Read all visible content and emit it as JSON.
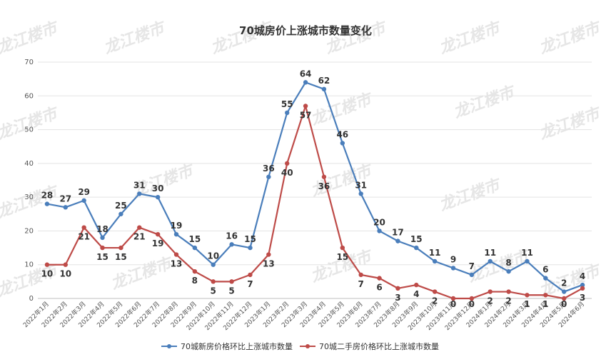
{
  "watermark": "龙江楼市",
  "chart_data": {
    "type": "line",
    "title": "70城房价上涨城市数量变化",
    "xlabel": "",
    "ylabel": "",
    "ylim": [
      0,
      70
    ],
    "yticks": [
      0,
      10,
      20,
      30,
      40,
      50,
      60,
      70
    ],
    "grid": "horizontal",
    "legend_position": "bottom",
    "categories": [
      "2022年1月",
      "2022年2月",
      "2022年3月",
      "2022年4月",
      "2022年5月",
      "2022年6月",
      "2022年7月",
      "2022年8月",
      "2022年9月",
      "2022年10月",
      "2022年11月",
      "2022年12月",
      "2023年1月",
      "2023年2月",
      "2023年3月",
      "2023年4月",
      "2023年5月",
      "2023年6月",
      "2023年7月",
      "2023年8月",
      "2023年9月",
      "2023年10月",
      "2023年11月",
      "2023年12月",
      "2024年1月",
      "2024年2月",
      "2024年3月",
      "2024年4月",
      "2024年5月",
      "2024年6月"
    ],
    "series": [
      {
        "name": "70城新房价格环比上涨城市数量",
        "color": "#4a7ebb",
        "values": [
          28,
          27,
          29,
          18,
          25,
          31,
          30,
          19,
          15,
          10,
          16,
          15,
          36,
          55,
          64,
          62,
          46,
          31,
          20,
          17,
          15,
          11,
          9,
          7,
          11,
          8,
          11,
          6,
          2,
          4
        ]
      },
      {
        "name": "70城二手房价格环比上涨城市数量",
        "color": "#be4b48",
        "values": [
          10,
          10,
          21,
          15,
          15,
          21,
          19,
          13,
          8,
          5,
          5,
          7,
          13,
          40,
          57,
          36,
          15,
          7,
          6,
          3,
          4,
          2,
          0,
          0,
          2,
          2,
          1,
          1,
          0,
          3
        ]
      }
    ]
  }
}
